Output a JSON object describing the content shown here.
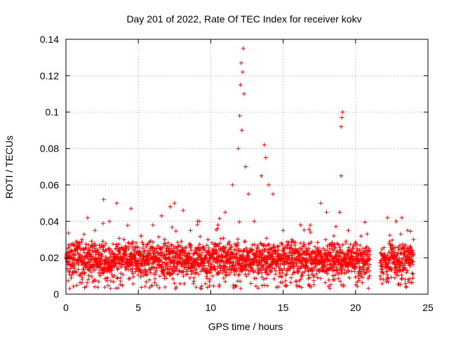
{
  "chart_data": {
    "type": "scatter",
    "title": "Day 201 of 2022, Rate Of TEC Index for receiver kokv",
    "xlabel": "GPS time / hours",
    "ylabel": "ROTI / TECUs",
    "xlim": [
      0,
      25
    ],
    "ylim": [
      0,
      0.14
    ],
    "xticks": [
      0,
      5,
      10,
      15,
      20,
      25
    ],
    "yticks": [
      0,
      0.02,
      0.04,
      0.06,
      0.08,
      0.1,
      0.12,
      0.14
    ],
    "xtick_labels": [
      "0",
      "5",
      "10",
      "15",
      "20",
      "25"
    ],
    "ytick_labels": [
      "0",
      "0.02",
      "0.04",
      "0.06",
      "0.08",
      "0.1",
      "0.12",
      "0.14"
    ],
    "grid": true,
    "marker": "+",
    "color": "#ff0000",
    "data_gap_hours": [
      21.0,
      21.7
    ],
    "series": [
      {
        "name": "ROTI",
        "baseline_band": {
          "x_range": [
            0,
            24
          ],
          "typical_low": 0.008,
          "typical_high": 0.03
        },
        "points": [
          [
            0.2,
            0.018
          ],
          [
            0.5,
            0.022
          ],
          [
            1.1,
            0.03
          ],
          [
            1.5,
            0.042
          ],
          [
            2.0,
            0.035
          ],
          [
            2.6,
            0.052
          ],
          [
            3.0,
            0.04
          ],
          [
            3.5,
            0.05
          ],
          [
            4.0,
            0.03
          ],
          [
            4.5,
            0.047
          ],
          [
            5.2,
            0.032
          ],
          [
            6.0,
            0.038
          ],
          [
            6.6,
            0.043
          ],
          [
            7.2,
            0.048
          ],
          [
            7.5,
            0.05
          ],
          [
            8.1,
            0.046
          ],
          [
            8.6,
            0.035
          ],
          [
            9.2,
            0.04
          ],
          [
            9.8,
            0.03
          ],
          [
            10.5,
            0.038
          ],
          [
            11.0,
            0.045
          ],
          [
            11.5,
            0.06
          ],
          [
            11.9,
            0.08
          ],
          [
            12.0,
            0.098
          ],
          [
            12.05,
            0.115
          ],
          [
            12.1,
            0.127
          ],
          [
            12.2,
            0.122
          ],
          [
            12.25,
            0.135
          ],
          [
            12.15,
            0.09
          ],
          [
            12.3,
            0.11
          ],
          [
            12.4,
            0.07
          ],
          [
            12.6,
            0.055
          ],
          [
            13.0,
            0.04
          ],
          [
            13.5,
            0.065
          ],
          [
            13.7,
            0.082
          ],
          [
            13.8,
            0.075
          ],
          [
            14.0,
            0.06
          ],
          [
            14.3,
            0.055
          ],
          [
            15.0,
            0.035
          ],
          [
            15.6,
            0.03
          ],
          [
            16.2,
            0.038
          ],
          [
            16.9,
            0.034
          ],
          [
            17.6,
            0.05
          ],
          [
            18.0,
            0.045
          ],
          [
            18.5,
            0.032
          ],
          [
            18.9,
            0.045
          ],
          [
            19.0,
            0.065
          ],
          [
            19.0,
            0.092
          ],
          [
            19.05,
            0.097
          ],
          [
            19.1,
            0.1
          ],
          [
            19.5,
            0.035
          ],
          [
            20.0,
            0.028
          ],
          [
            20.8,
            0.033
          ],
          [
            22.2,
            0.042
          ],
          [
            22.8,
            0.04
          ],
          [
            23.2,
            0.042
          ],
          [
            23.6,
            0.035
          ],
          [
            24.0,
            0.03
          ]
        ]
      }
    ]
  }
}
